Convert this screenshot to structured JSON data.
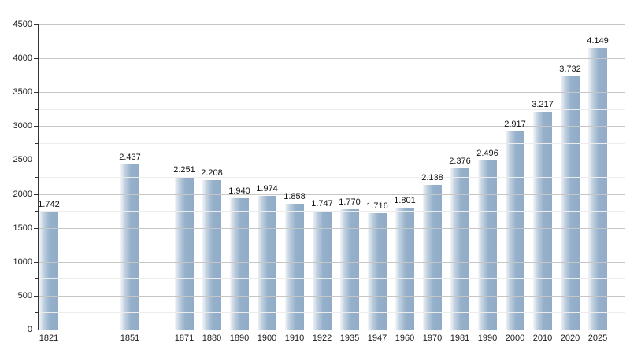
{
  "chart_data": {
    "type": "bar",
    "title": "",
    "xlabel": "",
    "ylabel": "",
    "categories": [
      "1821",
      "1851",
      "1871",
      "1880",
      "1890",
      "1900",
      "1910",
      "1922",
      "1935",
      "1947",
      "1960",
      "1970",
      "1981",
      "1990",
      "2000",
      "2010",
      "2020",
      "2025"
    ],
    "values": [
      1742,
      2437,
      2251,
      2208,
      1940,
      1974,
      1858,
      1747,
      1770,
      1716,
      1801,
      2138,
      2376,
      2496,
      2917,
      3217,
      3732,
      4149
    ],
    "value_labels": [
      "1.742",
      "2.437",
      "2.251",
      "2.208",
      "1.940",
      "1.974",
      "1.858",
      "1.747",
      "1.770",
      "1.716",
      "1.801",
      "2.138",
      "2.376",
      "2.496",
      "2.917",
      "3.217",
      "3.732",
      "4.149"
    ],
    "y_tick_labels": [
      "0",
      "500",
      "1000",
      "1500",
      "2000",
      "2500",
      "3000",
      "3500",
      "4000",
      "4500"
    ],
    "ylim": [
      0,
      4500
    ],
    "y_major_step": 500,
    "y_minor_step": 250,
    "grid": "on",
    "legend": "none",
    "bar_color": "#95b0ca",
    "bar_gradient_light": "#f2f6f9",
    "major_grid_color": "#c6c6c6",
    "minor_grid_color": "#ececec",
    "axis_color": "#333333",
    "text_color": "#1a1a1a"
  }
}
